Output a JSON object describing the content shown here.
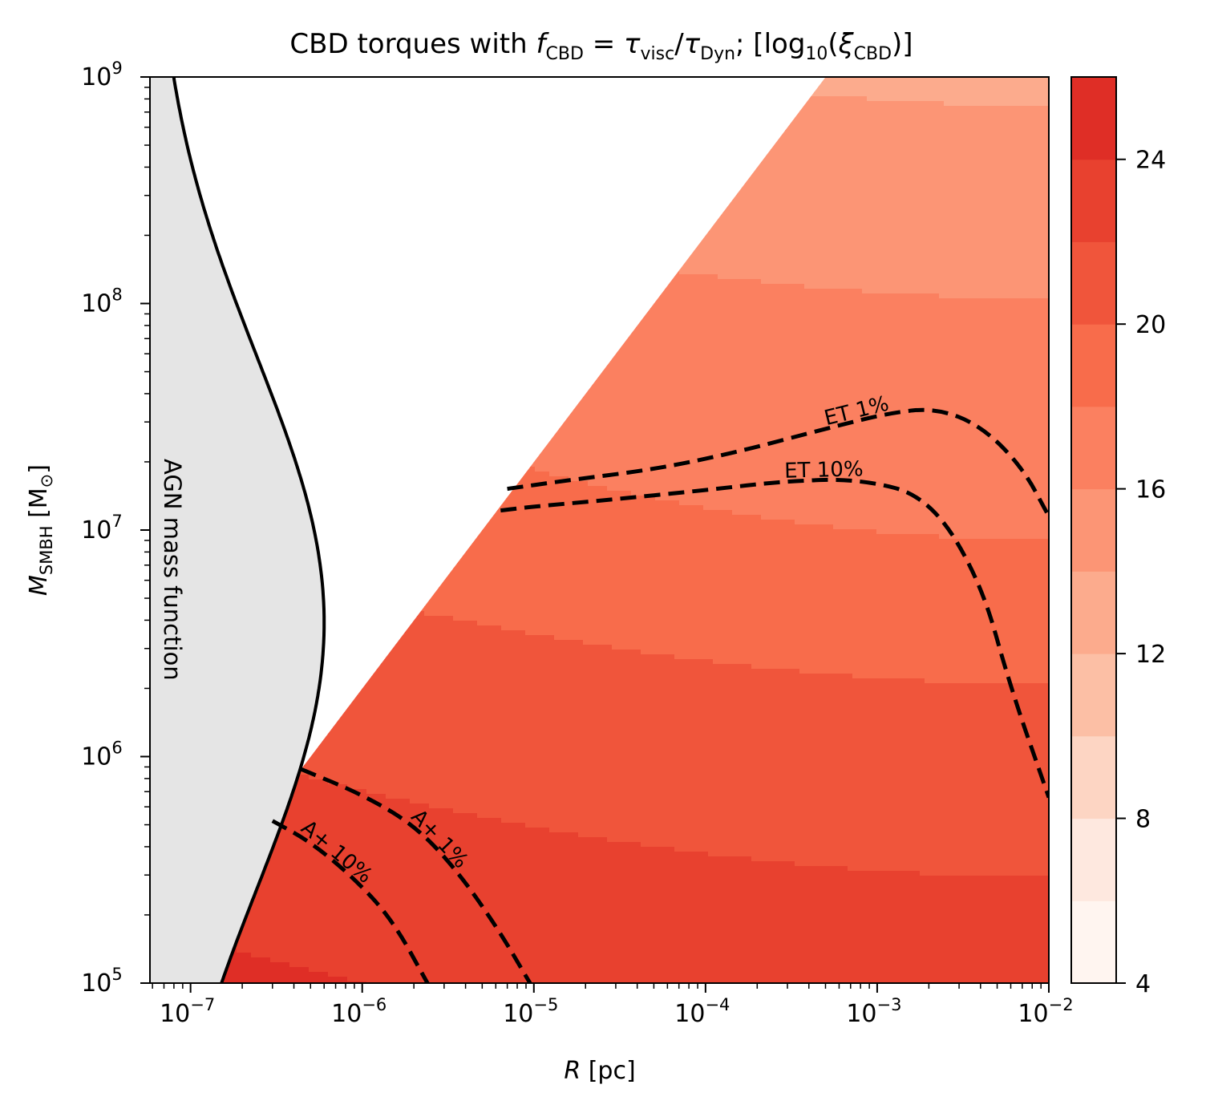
{
  "chart_data": {
    "type": "contourf",
    "title": "CBD torques with f_CBD = τ_visc/τ_Dyn; [log10(ξ_CBD)]",
    "title_parts": {
      "lead": "CBD torques with ",
      "f": "f",
      "f_sub": "CBD",
      "eq": " = ",
      "tau1": "τ",
      "tau1_sub": "visc",
      "slash": "/",
      "tau2": "τ",
      "tau2_sub": "Dyn",
      "semi": "; [log",
      "log_sub": "10",
      "xi_open": "(",
      "xi": "ξ",
      "xi_sub": "CBD",
      "close": ")]"
    },
    "xlabel": {
      "var": "R",
      "unit": " [pc]"
    },
    "ylabel": {
      "var": "M",
      "sub": "SMBH",
      "unit_open": " [M",
      "unit_sub": "⊙",
      "unit_close": "]"
    },
    "xscale": "log",
    "yscale": "log",
    "xlim": [
      5.8e-08,
      0.01
    ],
    "ylim": [
      100000,
      1000000000
    ],
    "x_ticks": [
      {
        "value": 1e-07,
        "base": "10",
        "exp": "−7"
      },
      {
        "value": 1e-06,
        "base": "10",
        "exp": "−6"
      },
      {
        "value": 1e-05,
        "base": "10",
        "exp": "−5"
      },
      {
        "value": 0.0001,
        "base": "10",
        "exp": "−4"
      },
      {
        "value": 0.001,
        "base": "10",
        "exp": "−3"
      },
      {
        "value": 0.01,
        "base": "10",
        "exp": "−2"
      }
    ],
    "y_ticks": [
      {
        "value": 100000,
        "base": "10",
        "exp": "5"
      },
      {
        "value": 1000000,
        "base": "10",
        "exp": "6"
      },
      {
        "value": 10000000,
        "base": "10",
        "exp": "7"
      },
      {
        "value": 100000000,
        "base": "10",
        "exp": "8"
      },
      {
        "value": 1000000000,
        "base": "10",
        "exp": "9"
      }
    ],
    "colorbar": {
      "levels": [
        4,
        6,
        8,
        10,
        12,
        14,
        16,
        18,
        20,
        22,
        24,
        26
      ],
      "colors": [
        "#fff5f0",
        "#feeae1",
        "#fdd5c4",
        "#fcbca2",
        "#fca183",
        "#fb8767",
        "#fb6d4d",
        "#f5543c",
        "#e9362a",
        "#d21f20"
      ],
      "colors_full": [
        "#fff5f0",
        "#fee8df",
        "#fdd5c3",
        "#fcbfa5",
        "#fcab8d",
        "#fc9575",
        "#fb8060",
        "#f86c4b",
        "#f0553b",
        "#e8412f",
        "#df2e26"
      ],
      "tick_labels": [
        {
          "value": 4,
          "label": "4"
        },
        {
          "value": 8,
          "label": "8"
        },
        {
          "value": 12,
          "label": "12"
        },
        {
          "value": 16,
          "label": "16"
        },
        {
          "value": 20,
          "label": "20"
        },
        {
          "value": 24,
          "label": "24"
        }
      ]
    },
    "field_model": {
      "boundary_note": "Field defined only where log10(M) <= log10(R) + 12.3 (disc boundary diagonal)",
      "dominant_gradient": "decreasing with mass, weakly with radius"
    },
    "contours": [
      {
        "label": "A+ 10%",
        "style": "dashed",
        "points": [
          [
            3e-07,
            520000
          ],
          [
            5e-07,
            420000
          ],
          [
            9e-07,
            290000
          ],
          [
            1.5e-06,
            190000
          ],
          [
            2.4e-06,
            100000
          ]
        ]
      },
      {
        "label": "A+ 1%",
        "style": "dashed",
        "points": [
          [
            4.4e-07,
            880000
          ],
          [
            1e-06,
            680000
          ],
          [
            2e-06,
            500000
          ],
          [
            3.5e-06,
            320000
          ],
          [
            6e-06,
            180000
          ],
          [
            9.5e-06,
            100000
          ]
        ]
      },
      {
        "label": "ET 10%",
        "style": "dashed",
        "points": [
          [
            6.4e-06,
            12200000
          ],
          [
            1e-05,
            12700000
          ],
          [
            2.5e-05,
            13500000
          ],
          [
            0.0001,
            15000000
          ],
          [
            0.0003,
            16500000
          ],
          [
            0.0008,
            16800000
          ],
          [
            0.002,
            14000000
          ],
          [
            0.004,
            6000000
          ],
          [
            0.006,
            2000000
          ],
          [
            0.01,
            660000
          ]
        ]
      },
      {
        "label": "ET 1%",
        "style": "dashed",
        "points": [
          [
            7e-06,
            15200000
          ],
          [
            1.5e-05,
            16500000
          ],
          [
            5e-05,
            18500000
          ],
          [
            0.00015,
            22000000
          ],
          [
            0.0005,
            28000000
          ],
          [
            0.0012,
            33000000
          ],
          [
            0.0022,
            34500000
          ],
          [
            0.004,
            29000000
          ],
          [
            0.007,
            19000000
          ],
          [
            0.01,
            11500000
          ]
        ]
      }
    ],
    "agn_mass_function": {
      "label": "AGN mass function",
      "distribution": "log-normal",
      "peak_mass": 3900000,
      "peak_R": 6e-07,
      "base_R": 6e-08,
      "log_sigma": 0.5
    }
  }
}
